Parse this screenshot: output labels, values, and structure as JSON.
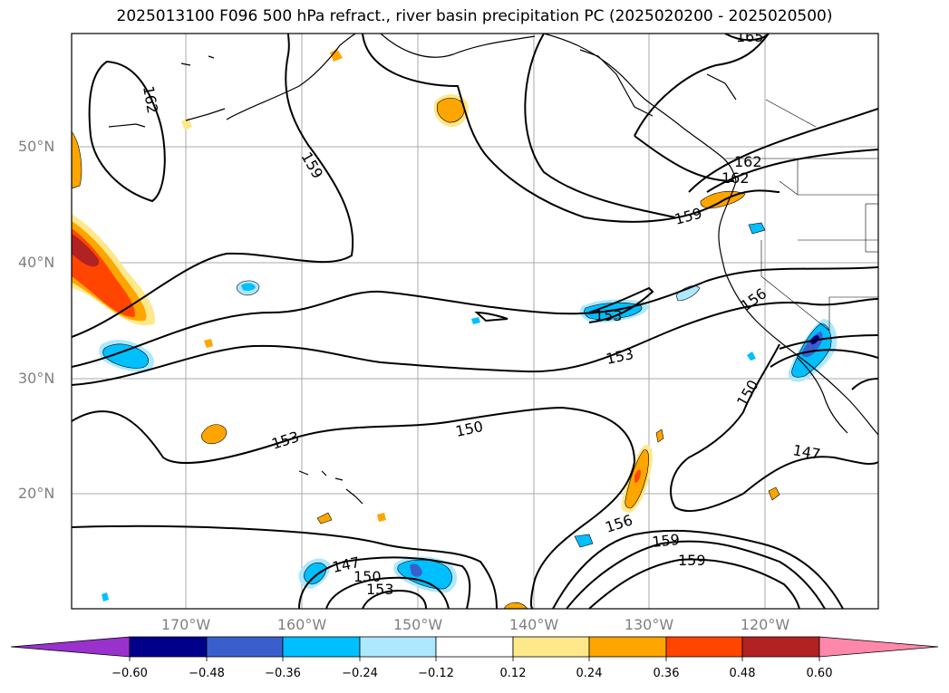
{
  "title": "2025013100 F096 500 hPa refract., river basin precipitation PC (2025020200 - 2025020500)",
  "lat_labels": [
    "50°N",
    "40°N",
    "30°N",
    "20°N"
  ],
  "lon_labels": [
    "170°W",
    "160°W",
    "150°W",
    "140°W",
    "130°W",
    "120°W"
  ],
  "colorbar": {
    "ticks": [
      "−0.60",
      "−0.48",
      "−0.36",
      "−0.24",
      "−0.12",
      "0.12",
      "0.24",
      "0.36",
      "0.48",
      "0.60"
    ],
    "colors": [
      "#9932cc",
      "#00008b",
      "#3a5fcd",
      "#00bfff",
      "#ade8ff",
      "#ffffff",
      "#ffe88a",
      "#ffa500",
      "#ff4500",
      "#b22222",
      "#ff88aa"
    ]
  },
  "contour_labels": [
    "162",
    "159",
    "162",
    "159",
    "156",
    "153",
    "150",
    "147",
    "153",
    "150",
    "153",
    "147",
    "150",
    "153",
    "156",
    "159",
    "159",
    "162",
    "165"
  ]
}
